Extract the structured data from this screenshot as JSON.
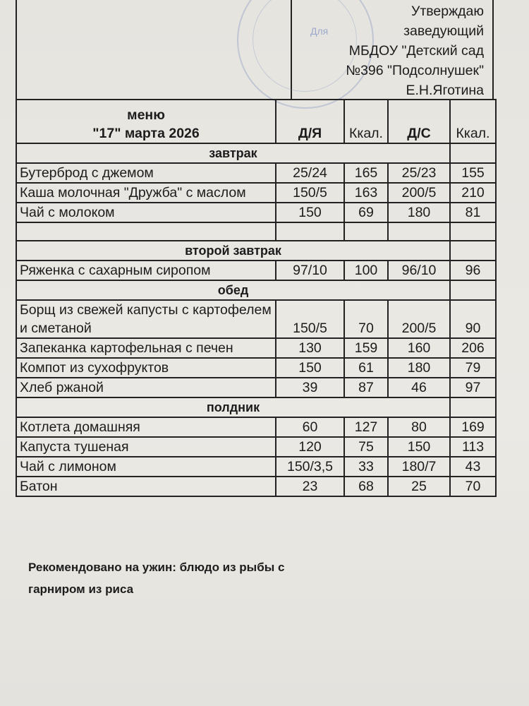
{
  "approval": {
    "lines": [
      "Утверждаю",
      "заведующий",
      "МБДОУ \"Детский сад",
      "№396 \"Подсолнушек\"",
      "Е.Н.Яготина"
    ],
    "stamp_text": "Для"
  },
  "header": {
    "menu_label": "меню",
    "date": "\"17\" марта 2026",
    "col_dya": "Д/Я",
    "col_kcal1": "Ккал.",
    "col_ds": "Д/С",
    "col_kcal2": "Ккал."
  },
  "sections": [
    {
      "title": "завтрак",
      "items": [
        {
          "name": "Бутерброд с джемом",
          "dya": "25/24",
          "kcal1": "165",
          "ds": "25/23",
          "kcal2": "155"
        },
        {
          "name": "Каша молочная \"Дружба\" с маслом",
          "dya": "150/5",
          "kcal1": "163",
          "ds": "200/5",
          "kcal2": "210"
        },
        {
          "name": "Чай с молоком",
          "dya": "150",
          "kcal1": "69",
          "ds": "180",
          "kcal2": "81"
        },
        {
          "name": "",
          "dya": "",
          "kcal1": "",
          "ds": "",
          "kcal2": ""
        }
      ]
    },
    {
      "title": "второй завтрак",
      "items": [
        {
          "name": "Ряженка с сахарным сиропом",
          "dya": "97/10",
          "kcal1": "100",
          "ds": "96/10",
          "kcal2": "96"
        }
      ]
    },
    {
      "title": "обед",
      "items": [
        {
          "name": "Борщ из свежей капусты с картофелем и сметаной",
          "dya": "150/5",
          "kcal1": "70",
          "ds": "200/5",
          "kcal2": "90"
        },
        {
          "name": "Запеканка картофельная с печен",
          "dya": "130",
          "kcal1": "159",
          "ds": "160",
          "kcal2": "206"
        },
        {
          "name": "Компот из сухофруктов",
          "dya": "150",
          "kcal1": "61",
          "ds": "180",
          "kcal2": "79"
        },
        {
          "name": "Хлеб ржаной",
          "dya": "39",
          "kcal1": "87",
          "ds": "46",
          "kcal2": "97"
        }
      ]
    },
    {
      "title": "полдник",
      "items": [
        {
          "name": "Котлета домашняя",
          "dya": "60",
          "kcal1": "127",
          "ds": "80",
          "kcal2": "169"
        },
        {
          "name": "Капуста тушеная",
          "dya": "120",
          "kcal1": "75",
          "ds": "150",
          "kcal2": "113"
        },
        {
          "name": "Чай с лимоном",
          "dya": "150/3,5",
          "kcal1": "33",
          "ds": "180/7",
          "kcal2": "43"
        },
        {
          "name": "Батон",
          "dya": "23",
          "kcal1": "68",
          "ds": "25",
          "kcal2": "70"
        }
      ]
    }
  ],
  "footer": {
    "line1": "Рекомендовано на ужин: блюдо из рыбы с",
    "line2": "гарниром из риса"
  }
}
